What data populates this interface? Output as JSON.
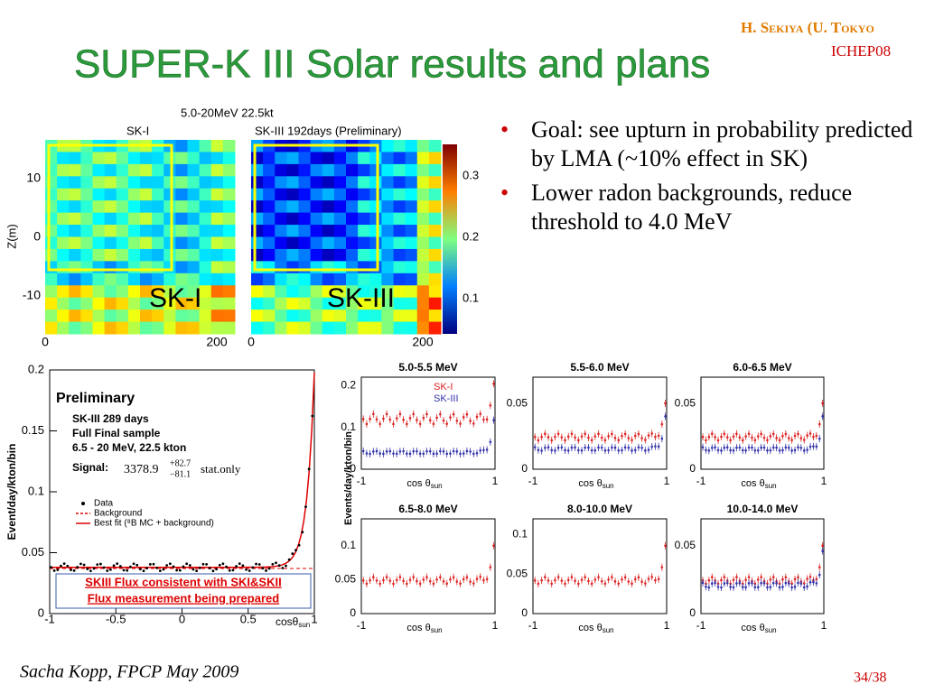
{
  "header": {
    "title": "SUPER-K III Solar results and plans",
    "author": "H. Sekiya (U. Tokyo",
    "conference": "ICHEP08"
  },
  "bullets": [
    "Goal:  see upturn in probability predicted by LMA (~10% effect in SK)",
    "Lower radon backgrounds, reduce threshold to 4.0 MeV"
  ],
  "vertex_figure": {
    "caption": "5.0-20MeV  22.5kt",
    "panels": [
      {
        "header": "SK-I",
        "label": "SK-I"
      },
      {
        "header": "SK-III 192days (Preliminary)",
        "label": "SK-III"
      }
    ],
    "y_axis_label": "Z(m)",
    "y_ticks": [
      "10",
      "0",
      "-10"
    ],
    "x_ticks": [
      "0",
      "200"
    ],
    "colorbar_ticks": [
      "0.3",
      "0.2",
      "0.1"
    ]
  },
  "spectrum_figure": {
    "y_axis_label": "Event/day/kton/bin",
    "y_ticks": [
      "0.2",
      "0.15",
      "0.1",
      "0.05",
      "0"
    ],
    "x_ticks": [
      "-1",
      "-0.5",
      "0",
      "0.5",
      "1"
    ],
    "x_axis_label": "cosθ",
    "x_axis_sub": "sun",
    "legend_title": "Preliminary",
    "info": [
      "SK-III 289 days",
      "Full Final sample",
      "6.5 - 20 MeV,  22.5 kton"
    ],
    "signal_label": "Signal:",
    "signal_value": "3378.9",
    "signal_err": [
      "+82.7",
      "−81.1"
    ],
    "signal_note": "stat.only",
    "legend": [
      "Data",
      "Background",
      "Best fit (⁸B MC + background)"
    ],
    "note": [
      "SKIII Flux consistent with SKI&SKII",
      "Flux measurement being prepared"
    ]
  },
  "energy_figure": {
    "y_axis_label": "Events/day/kton/bin",
    "series_labels": [
      "SK-I",
      "SK-III"
    ],
    "x_axis_label": "cos θ",
    "x_axis_sub": "sun",
    "x_ticks": [
      "-1",
      "1"
    ],
    "panels": [
      {
        "title": "5.0-5.5 MeV",
        "y_ticks": [
          "0.2",
          "0.1",
          "0"
        ]
      },
      {
        "title": "5.5-6.0 MeV",
        "y_ticks": [
          "0.05",
          "0"
        ]
      },
      {
        "title": "6.0-6.5 MeV",
        "y_ticks": [
          "0.05",
          "0"
        ]
      },
      {
        "title": "6.5-8.0 MeV",
        "y_ticks": [
          "0.1",
          "0.05",
          "0"
        ]
      },
      {
        "title": "8.0-10.0 MeV",
        "y_ticks": [
          "0.1",
          "0.05",
          "0"
        ]
      },
      {
        "title": "10.0-14.0 MeV",
        "y_ticks": [
          "0.05",
          "0"
        ]
      }
    ]
  },
  "footer": {
    "author": "Sacha Kopp, FPCP May 2009",
    "page": "34/38"
  }
}
